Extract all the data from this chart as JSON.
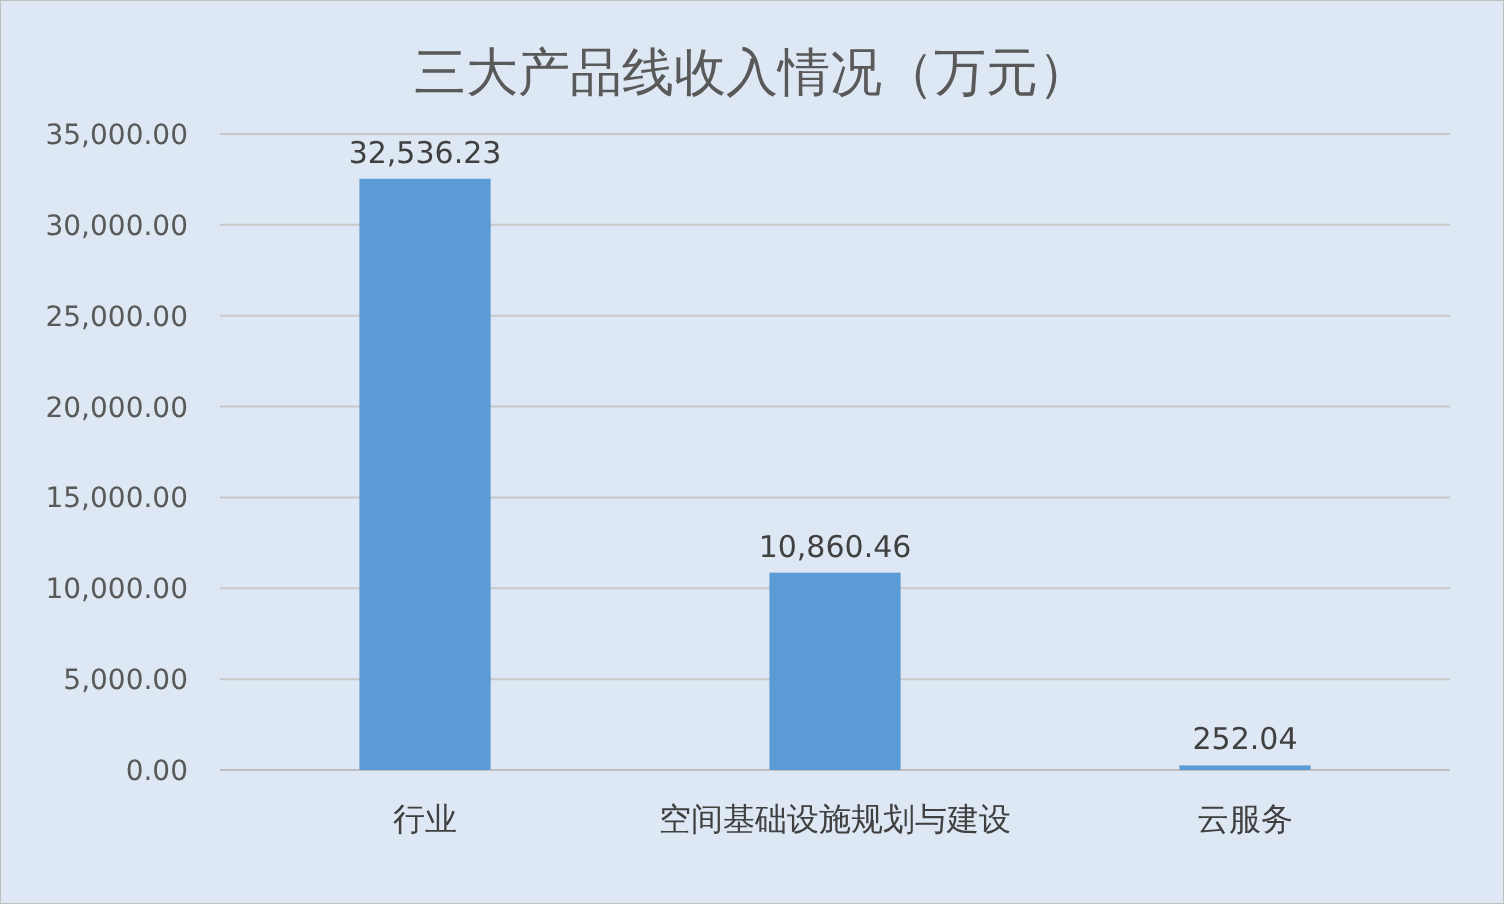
{
  "chart_data": {
    "type": "bar",
    "title": "三大产品线收入情况（万元）",
    "categories": [
      "行业",
      "空间基础设施规划与建设",
      "云服务"
    ],
    "values": [
      32536.23,
      10860.46,
      252.04
    ],
    "value_labels": [
      "32,536.23",
      "10,860.46",
      "252.04"
    ],
    "color": "#5b9bd5",
    "ylim": [
      0,
      35000
    ],
    "yticks": [
      {
        "value": 0,
        "label": "0.00"
      },
      {
        "value": 5000,
        "label": "5,000.00"
      },
      {
        "value": 10000,
        "label": "10,000.00"
      },
      {
        "value": 15000,
        "label": "15,000.00"
      },
      {
        "value": 20000,
        "label": "20,000.00"
      },
      {
        "value": 25000,
        "label": "25,000.00"
      },
      {
        "value": 30000,
        "label": "30,000.00"
      },
      {
        "value": 35000,
        "label": "35,000.00"
      }
    ],
    "grid": "y"
  }
}
